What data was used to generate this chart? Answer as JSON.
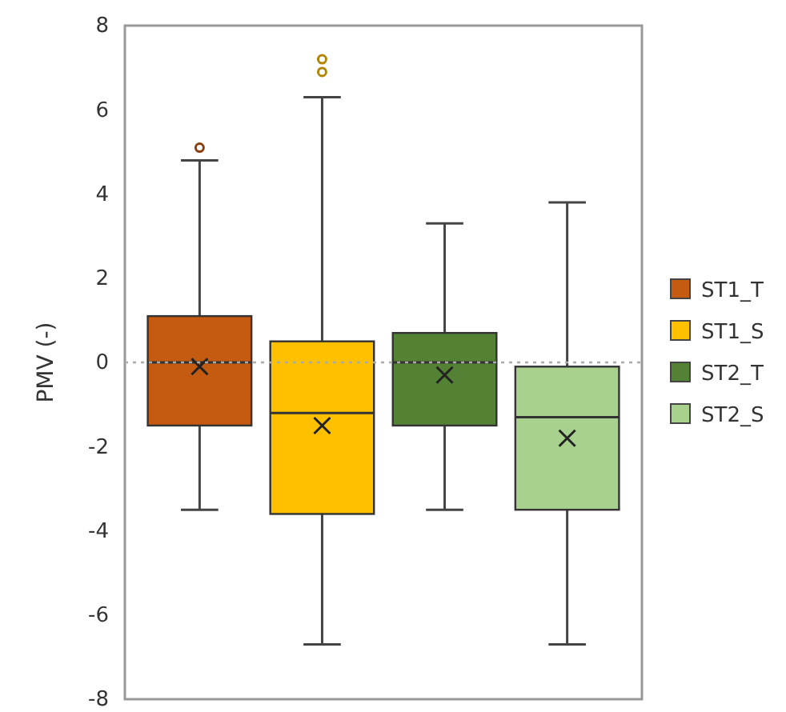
{
  "chart_data": {
    "type": "box",
    "ylabel": "PMV (-)",
    "categories": [
      null,
      null,
      null,
      null
    ],
    "ylim": [
      -8,
      8
    ],
    "yticks": [
      -8,
      -6,
      -4,
      -2,
      0,
      2,
      4,
      6,
      8
    ],
    "tick_labels": "y",
    "grid": false,
    "legend": "right",
    "ref_lines": [
      {
        "axis": "y",
        "value": 0,
        "color": "#aaaaaa",
        "line_style": "dotted"
      }
    ],
    "series": [
      {
        "name": "ST1_T",
        "color": "#c55a11",
        "boxes": [
          {
            "low": -3.5,
            "q1": -1.5,
            "median": 0,
            "q3": 1.1,
            "high": 4.8,
            "mean": -0.1,
            "outliers": [
              5.1
            ]
          },
          null,
          null,
          null
        ]
      },
      {
        "name": "ST1_S",
        "color": "#ffc000",
        "boxes": [
          null,
          {
            "low": -6.7,
            "q1": -3.6,
            "median": -1.2,
            "q3": 0.5,
            "high": 6.3,
            "mean": -1.5,
            "outliers": [
              6.9,
              7.2
            ]
          },
          null,
          null
        ]
      },
      {
        "name": "ST2_T",
        "color": "#548235",
        "boxes": [
          null,
          null,
          {
            "low": -3.5,
            "q1": -1.5,
            "median": 0,
            "q3": 0.7,
            "high": 3.3,
            "mean": -0.3
          },
          null
        ]
      },
      {
        "name": "ST2_S",
        "color": "#a9d18e",
        "boxes": [
          null,
          null,
          null,
          {
            "low": -6.7,
            "q1": -3.5,
            "median": -1.3,
            "q3": -0.1,
            "high": 3.8,
            "mean": -1.8
          }
        ]
      }
    ]
  }
}
